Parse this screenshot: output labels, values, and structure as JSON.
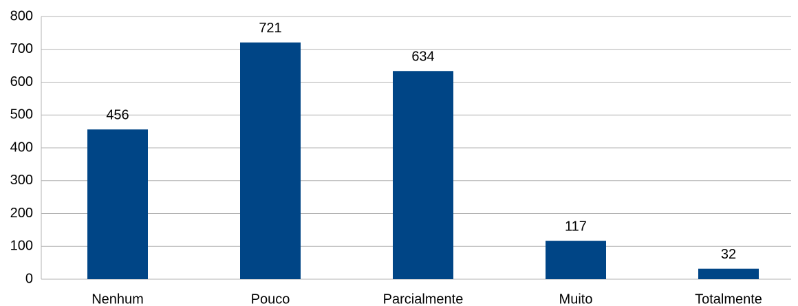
{
  "chart_data": {
    "type": "bar",
    "categories": [
      "Nenhum",
      "Pouco",
      "Parcialmente",
      "Muito",
      "Totalmente"
    ],
    "values": [
      456,
      721,
      634,
      117,
      32
    ],
    "color": "#004586",
    "ylim": [
      0,
      800
    ],
    "yticks": [
      0,
      100,
      200,
      300,
      400,
      500,
      600,
      700,
      800
    ],
    "grid": true
  }
}
